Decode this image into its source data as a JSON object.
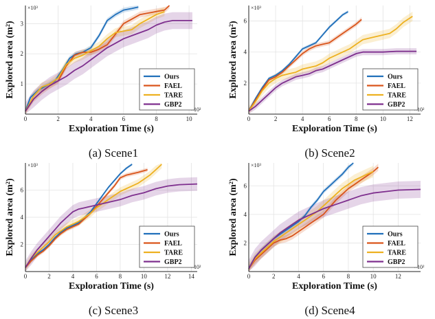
{
  "colors": {
    "ours": "#1f6fba",
    "fael": "#d9541a",
    "tare": "#edb120",
    "gbp2": "#7e2f8e"
  },
  "chart_data": [
    {
      "type": "line",
      "caption": "(a) Scene1",
      "xlabel": "Exploration Time (s)",
      "ylabel": "Explored area (m²)",
      "x_multiplier": "×10²",
      "y_multiplier": "×10³",
      "xlim": [
        0,
        10.5
      ],
      "ylim": [
        0,
        3.6
      ],
      "xticks": [
        0,
        2,
        4,
        6,
        8,
        10
      ],
      "yticks": [
        1,
        2,
        3
      ],
      "grid": true,
      "legend_position": "bottom-right",
      "series": [
        {
          "name": "Ours",
          "color_key": "ours",
          "band": 0.08,
          "x": [
            0,
            0.3,
            0.8,
            1.3,
            1.8,
            2.3,
            2.7,
            3.1,
            3.5,
            4.0,
            4.5,
            5.0,
            5.5,
            6.0,
            6.5,
            6.9
          ],
          "y": [
            0.1,
            0.55,
            0.8,
            0.95,
            1.1,
            1.5,
            1.85,
            2.0,
            2.05,
            2.2,
            2.6,
            3.1,
            3.3,
            3.45,
            3.5,
            3.55
          ]
        },
        {
          "name": "FAEL",
          "color_key": "fael",
          "band": 0.1,
          "x": [
            0,
            0.5,
            1.0,
            1.5,
            2.0,
            2.5,
            3.0,
            3.5,
            4.0,
            4.5,
            5.0,
            5.5,
            6.0,
            6.5,
            7.0,
            7.5,
            8.0,
            8.5,
            8.8
          ],
          "y": [
            0.1,
            0.5,
            0.75,
            0.95,
            1.1,
            1.6,
            1.95,
            2.05,
            2.05,
            2.15,
            2.3,
            2.65,
            3.0,
            3.15,
            3.3,
            3.35,
            3.4,
            3.45,
            3.6
          ]
        },
        {
          "name": "TARE",
          "color_key": "tare",
          "band": 0.15,
          "x": [
            0,
            0.5,
            1.0,
            1.5,
            2.0,
            2.5,
            3.0,
            3.5,
            4.0,
            4.5,
            5.0,
            5.5,
            6.0,
            6.5,
            7.0,
            7.5,
            8.0,
            8.5
          ],
          "y": [
            0.1,
            0.6,
            0.9,
            1.0,
            1.2,
            1.65,
            1.85,
            1.95,
            2.1,
            2.25,
            2.5,
            2.7,
            2.75,
            2.8,
            3.0,
            3.15,
            3.3,
            3.4
          ]
        },
        {
          "name": "GBP2",
          "color_key": "gbp2",
          "band": 0.28,
          "x": [
            0,
            0.5,
            1.0,
            1.5,
            2.0,
            2.5,
            3.0,
            3.5,
            4.0,
            4.5,
            5.0,
            5.5,
            6.0,
            6.5,
            7.0,
            7.5,
            8.0,
            8.5,
            9.0,
            9.5,
            10.2
          ],
          "y": [
            0.1,
            0.5,
            0.75,
            0.95,
            1.1,
            1.25,
            1.45,
            1.6,
            1.8,
            2.0,
            2.2,
            2.35,
            2.5,
            2.6,
            2.7,
            2.8,
            2.95,
            3.05,
            3.1,
            3.1,
            3.1
          ]
        }
      ]
    },
    {
      "type": "line",
      "caption": "(b) Scene2",
      "xlabel": "Exploration Time (s)",
      "ylabel": "Explored area (m²)",
      "x_multiplier": "×10²",
      "y_multiplier": "×10³",
      "xlim": [
        0,
        12.8
      ],
      "ylim": [
        0,
        7.0
      ],
      "xticks": [
        0,
        2,
        4,
        6,
        8,
        10,
        12
      ],
      "yticks": [
        2,
        4,
        6
      ],
      "grid": true,
      "legend_position": "bottom-right",
      "series": [
        {
          "name": "Ours",
          "color_key": "ours",
          "band": 0.1,
          "x": [
            0,
            0.5,
            1.0,
            1.5,
            2.0,
            2.5,
            3.0,
            3.5,
            4.0,
            4.5,
            5.0,
            5.5,
            6.0,
            6.5,
            7.0,
            7.4
          ],
          "y": [
            0.2,
            1.0,
            1.7,
            2.3,
            2.5,
            2.8,
            3.2,
            3.7,
            4.2,
            4.4,
            4.6,
            5.1,
            5.6,
            6.0,
            6.4,
            6.6
          ]
        },
        {
          "name": "FAEL",
          "color_key": "fael",
          "band": 0.15,
          "x": [
            0,
            0.5,
            1.0,
            1.5,
            2.0,
            2.5,
            3.0,
            3.5,
            4.0,
            4.5,
            5.0,
            5.5,
            6.0,
            6.5,
            7.0,
            7.5,
            8.0,
            8.4
          ],
          "y": [
            0.2,
            0.9,
            1.6,
            2.2,
            2.4,
            2.7,
            3.1,
            3.5,
            3.9,
            4.2,
            4.4,
            4.5,
            4.6,
            4.9,
            5.2,
            5.5,
            5.8,
            6.1
          ]
        },
        {
          "name": "TARE",
          "color_key": "tare",
          "band": 0.3,
          "x": [
            0,
            0.5,
            1.0,
            1.5,
            2.0,
            2.5,
            3.0,
            3.5,
            4.0,
            4.5,
            5.0,
            5.5,
            6.0,
            6.5,
            7.0,
            7.5,
            8.0,
            8.5,
            9.0,
            9.5,
            10.0,
            10.5,
            11.0,
            11.5,
            12.2
          ],
          "y": [
            0.2,
            0.8,
            1.5,
            2.0,
            2.3,
            2.5,
            2.6,
            2.7,
            2.9,
            3.0,
            3.1,
            3.3,
            3.6,
            3.8,
            4.0,
            4.2,
            4.5,
            4.8,
            4.9,
            5.0,
            5.1,
            5.2,
            5.5,
            5.9,
            6.3
          ]
        },
        {
          "name": "GBP2",
          "color_key": "gbp2",
          "band": 0.2,
          "x": [
            0,
            0.5,
            1.0,
            1.5,
            2.0,
            2.5,
            3.0,
            3.5,
            4.0,
            4.5,
            5.0,
            5.5,
            6.0,
            6.5,
            7.0,
            7.5,
            8.0,
            8.5,
            9.0,
            10.0,
            11.0,
            12.5
          ],
          "y": [
            0.2,
            0.5,
            0.9,
            1.3,
            1.7,
            2.0,
            2.2,
            2.4,
            2.5,
            2.6,
            2.8,
            2.9,
            3.1,
            3.3,
            3.5,
            3.7,
            3.9,
            4.0,
            4.0,
            4.0,
            4.05,
            4.05
          ]
        }
      ]
    },
    {
      "type": "line",
      "caption": "(c) Scene3",
      "xlabel": "Exploration Time (s)",
      "ylabel": "Explored area (m²)",
      "x_multiplier": "×10²",
      "y_multiplier": "×10³",
      "xlim": [
        0,
        14.5
      ],
      "ylim": [
        0,
        8.0
      ],
      "xticks": [
        0,
        2,
        4,
        6,
        8,
        10,
        12,
        14
      ],
      "yticks": [
        2,
        4,
        6
      ],
      "grid": true,
      "legend_position": "bottom-right",
      "series": [
        {
          "name": "Ours",
          "color_key": "ours",
          "band": 0.1,
          "x": [
            0,
            0.5,
            1.0,
            1.5,
            2.0,
            2.5,
            3.0,
            3.5,
            4.0,
            4.5,
            5.0,
            5.5,
            6.0,
            6.5,
            7.0,
            7.5,
            8.0,
            8.5,
            9.0
          ],
          "y": [
            0.3,
            0.9,
            1.3,
            1.6,
            2.0,
            2.5,
            2.9,
            3.2,
            3.4,
            3.6,
            4.0,
            4.4,
            5.0,
            5.6,
            6.2,
            6.7,
            7.2,
            7.6,
            7.9
          ]
        },
        {
          "name": "FAEL",
          "color_key": "fael",
          "band": 0.15,
          "x": [
            0,
            0.5,
            1.0,
            1.5,
            2.0,
            2.5,
            3.0,
            3.5,
            4.0,
            4.5,
            5.0,
            5.5,
            6.0,
            6.5,
            7.0,
            7.5,
            8.0,
            8.5,
            9.0,
            9.5,
            10.3
          ],
          "y": [
            0.3,
            0.8,
            1.2,
            1.5,
            1.9,
            2.4,
            2.8,
            3.1,
            3.3,
            3.5,
            3.9,
            4.3,
            4.8,
            5.3,
            5.8,
            6.3,
            6.9,
            7.1,
            7.2,
            7.3,
            7.5
          ]
        },
        {
          "name": "TARE",
          "color_key": "tare",
          "band": 0.3,
          "x": [
            0,
            0.5,
            1.0,
            1.5,
            2.0,
            2.5,
            3.0,
            3.5,
            4.0,
            4.5,
            5.0,
            5.5,
            6.0,
            6.5,
            7.0,
            7.5,
            8.0,
            8.5,
            9.0,
            9.5,
            10.0,
            10.5,
            11.0,
            11.5
          ],
          "y": [
            0.3,
            1.0,
            1.4,
            1.8,
            2.2,
            2.7,
            3.0,
            3.3,
            3.5,
            3.7,
            4.0,
            4.3,
            4.7,
            5.0,
            5.3,
            5.6,
            5.9,
            6.1,
            6.3,
            6.5,
            6.8,
            7.1,
            7.5,
            7.9
          ]
        },
        {
          "name": "GBP2",
          "color_key": "gbp2",
          "band": 0.5,
          "x": [
            0,
            0.5,
            1.0,
            1.5,
            2.0,
            2.5,
            3.0,
            3.5,
            4.0,
            4.5,
            5.0,
            5.5,
            6.0,
            7.0,
            8.0,
            9.0,
            10.0,
            11.0,
            12.0,
            13.0,
            14.5
          ],
          "y": [
            0.3,
            1.0,
            1.6,
            2.1,
            2.6,
            3.1,
            3.6,
            4.0,
            4.4,
            4.6,
            4.7,
            4.8,
            4.9,
            5.1,
            5.3,
            5.6,
            5.8,
            6.1,
            6.3,
            6.4,
            6.45
          ]
        }
      ]
    },
    {
      "type": "line",
      "caption": "(d) Scene4",
      "xlabel": "Exploration Time (s)",
      "ylabel": "Explored area (m²)",
      "x_multiplier": "×10²",
      "y_multiplier": "×10³",
      "xlim": [
        0,
        13.8
      ],
      "ylim": [
        0,
        7.6
      ],
      "xticks": [
        0,
        2,
        4,
        6,
        8,
        10,
        12
      ],
      "yticks": [
        2,
        4,
        6
      ],
      "grid": true,
      "legend_position": "bottom-right",
      "series": [
        {
          "name": "Ours",
          "color_key": "ours",
          "band": 0.15,
          "x": [
            0,
            0.5,
            1.0,
            1.5,
            2.0,
            2.5,
            3.0,
            3.5,
            4.0,
            4.5,
            5.0,
            5.5,
            6.0,
            6.5,
            7.0,
            7.5,
            8.0,
            8.4
          ],
          "y": [
            0.2,
            1.0,
            1.5,
            1.9,
            2.3,
            2.6,
            2.9,
            3.2,
            3.5,
            3.9,
            4.5,
            5.0,
            5.6,
            6.0,
            6.4,
            6.8,
            7.3,
            7.6
          ]
        },
        {
          "name": "FAEL",
          "color_key": "fael",
          "band": 0.25,
          "x": [
            0,
            0.5,
            1.0,
            1.5,
            2.0,
            2.5,
            3.0,
            3.5,
            4.0,
            4.5,
            5.0,
            5.5,
            6.0,
            6.5,
            7.0,
            7.5,
            8.0,
            8.5,
            9.0,
            9.5,
            10.0,
            10.4
          ],
          "y": [
            0.2,
            0.8,
            1.2,
            1.6,
            2.0,
            2.2,
            2.3,
            2.5,
            2.8,
            3.1,
            3.4,
            3.7,
            4.0,
            4.5,
            5.0,
            5.4,
            5.8,
            6.1,
            6.4,
            6.7,
            7.0,
            7.3
          ]
        },
        {
          "name": "TARE",
          "color_key": "tare",
          "band": 0.4,
          "x": [
            0,
            0.5,
            1.0,
            1.5,
            2.0,
            2.5,
            3.0,
            3.5,
            4.0,
            4.5,
            5.0,
            5.5,
            6.0,
            6.5,
            7.0,
            7.5,
            8.0,
            8.5,
            9.0,
            9.5,
            10.0
          ],
          "y": [
            0.2,
            0.9,
            1.3,
            1.7,
            2.1,
            2.4,
            2.7,
            3.0,
            3.3,
            3.6,
            3.9,
            4.2,
            4.6,
            5.0,
            5.4,
            5.8,
            6.1,
            6.4,
            6.6,
            6.8,
            7.0
          ]
        },
        {
          "name": "GBP2",
          "color_key": "gbp2",
          "band": 0.6,
          "x": [
            0,
            0.5,
            1.0,
            1.5,
            2.0,
            2.5,
            3.0,
            3.5,
            4.0,
            4.5,
            5.0,
            5.5,
            6.0,
            7.0,
            8.0,
            9.0,
            10.0,
            11.0,
            12.0,
            13.8
          ],
          "y": [
            0.2,
            1.0,
            1.5,
            1.9,
            2.3,
            2.7,
            3.0,
            3.3,
            3.6,
            3.8,
            4.0,
            4.2,
            4.4,
            4.7,
            5.0,
            5.3,
            5.5,
            5.6,
            5.7,
            5.75
          ]
        }
      ]
    }
  ]
}
